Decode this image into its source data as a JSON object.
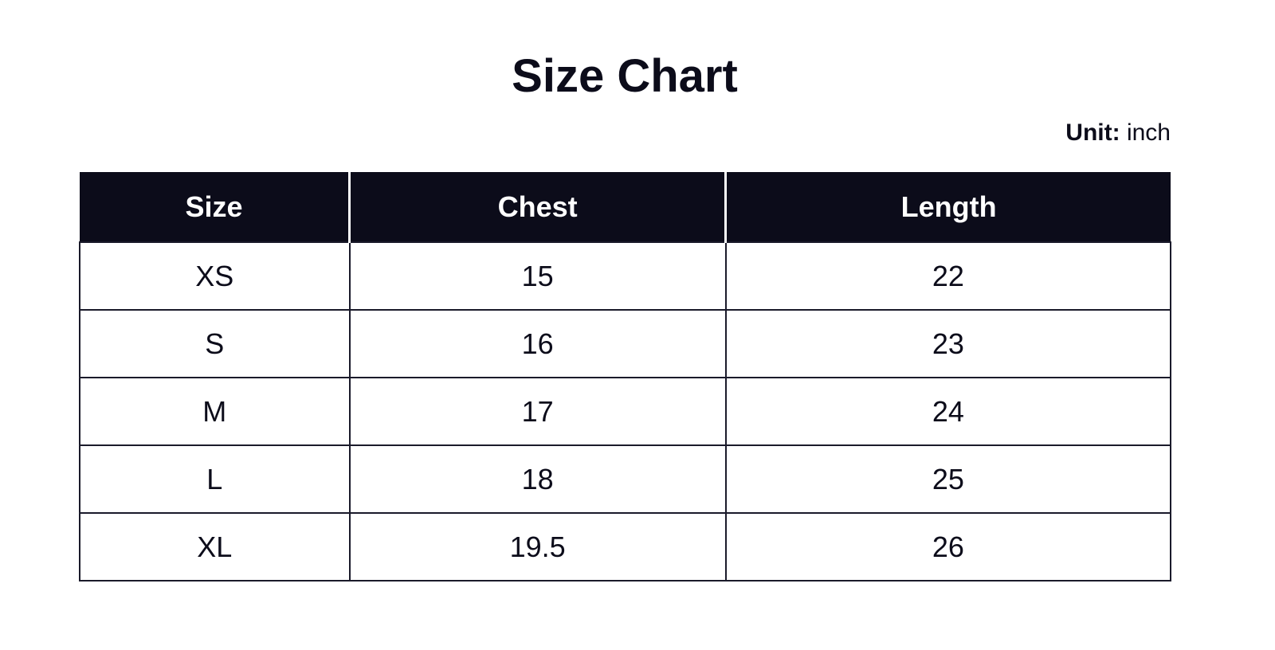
{
  "title": "Size Chart",
  "unit": {
    "label": "Unit:",
    "value": "inch"
  },
  "table": {
    "headers": [
      "Size",
      "Chest",
      "Length"
    ],
    "rows": [
      [
        "XS",
        "15",
        "22"
      ],
      [
        "S",
        "16",
        "23"
      ],
      [
        "M",
        "17",
        "24"
      ],
      [
        "L",
        "18",
        "25"
      ],
      [
        "XL",
        "19.5",
        "26"
      ]
    ]
  },
  "colors": {
    "header_bg": "#0c0c1a",
    "header_text": "#ffffff"
  }
}
